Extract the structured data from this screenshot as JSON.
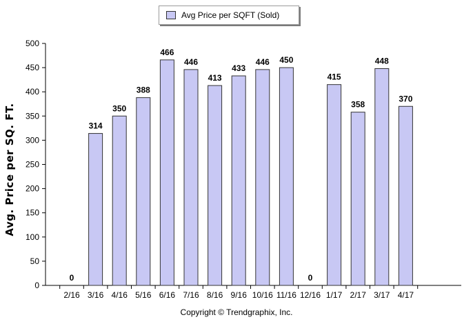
{
  "chart_data": {
    "type": "bar",
    "categories": [
      "2/16",
      "3/16",
      "4/16",
      "5/16",
      "6/16",
      "7/16",
      "8/16",
      "9/16",
      "10/16",
      "11/16",
      "12/16",
      "1/17",
      "2/17",
      "3/17",
      "4/17"
    ],
    "series": [
      {
        "name": "Avg Price per SQFT (Sold)",
        "values": [
          0,
          314,
          350,
          388,
          466,
          446,
          413,
          433,
          446,
          450,
          0,
          415,
          358,
          448,
          370
        ]
      }
    ],
    "data_labels": [
      "0",
      "314",
      "350",
      "388",
      "466",
      "446",
      "413",
      "433",
      "446",
      "450",
      "0",
      "415",
      "358",
      "448",
      "370"
    ],
    "ylabel": "Avg. Price per SQ. FT.",
    "xlabel": "",
    "ylim": [
      0,
      500
    ],
    "yticks": [
      0,
      50,
      100,
      150,
      200,
      250,
      300,
      350,
      400,
      450,
      500
    ],
    "grid": false,
    "legend_position": "top-center",
    "colors": {
      "bar_fill": "#c8c8f4",
      "bar_stroke": "#333333",
      "axis": "#000000"
    }
  },
  "footer": "Copyright © Trendgraphix, Inc."
}
